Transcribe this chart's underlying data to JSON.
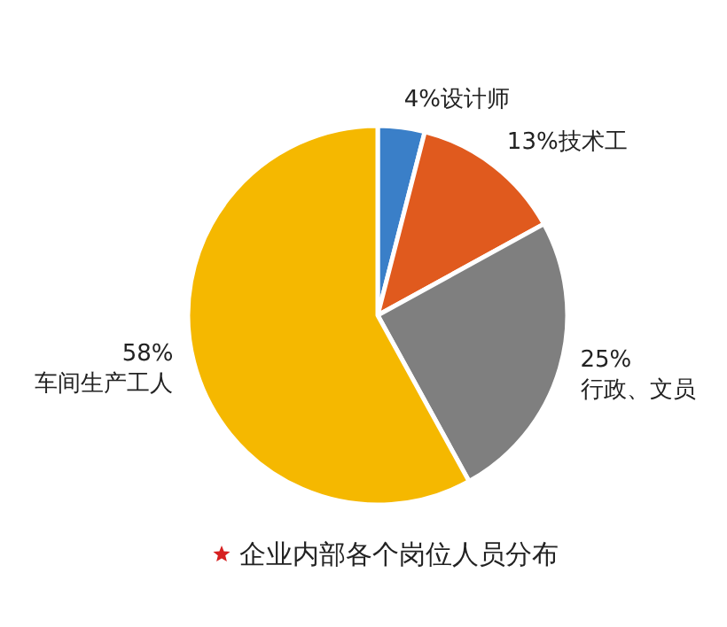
{
  "chart_data": {
    "type": "pie",
    "title": "企业内部各个岗位人员分布",
    "categories": [
      "设计师",
      "技术工",
      "行政、文员",
      "车间生产工人"
    ],
    "values": [
      4,
      13,
      25,
      58
    ],
    "value_labels": [
      "4%",
      "13%",
      "25%",
      "58%"
    ],
    "colors": [
      "#3a7fc8",
      "#e05a1e",
      "#7f7f7f",
      "#f5b800"
    ]
  }
}
